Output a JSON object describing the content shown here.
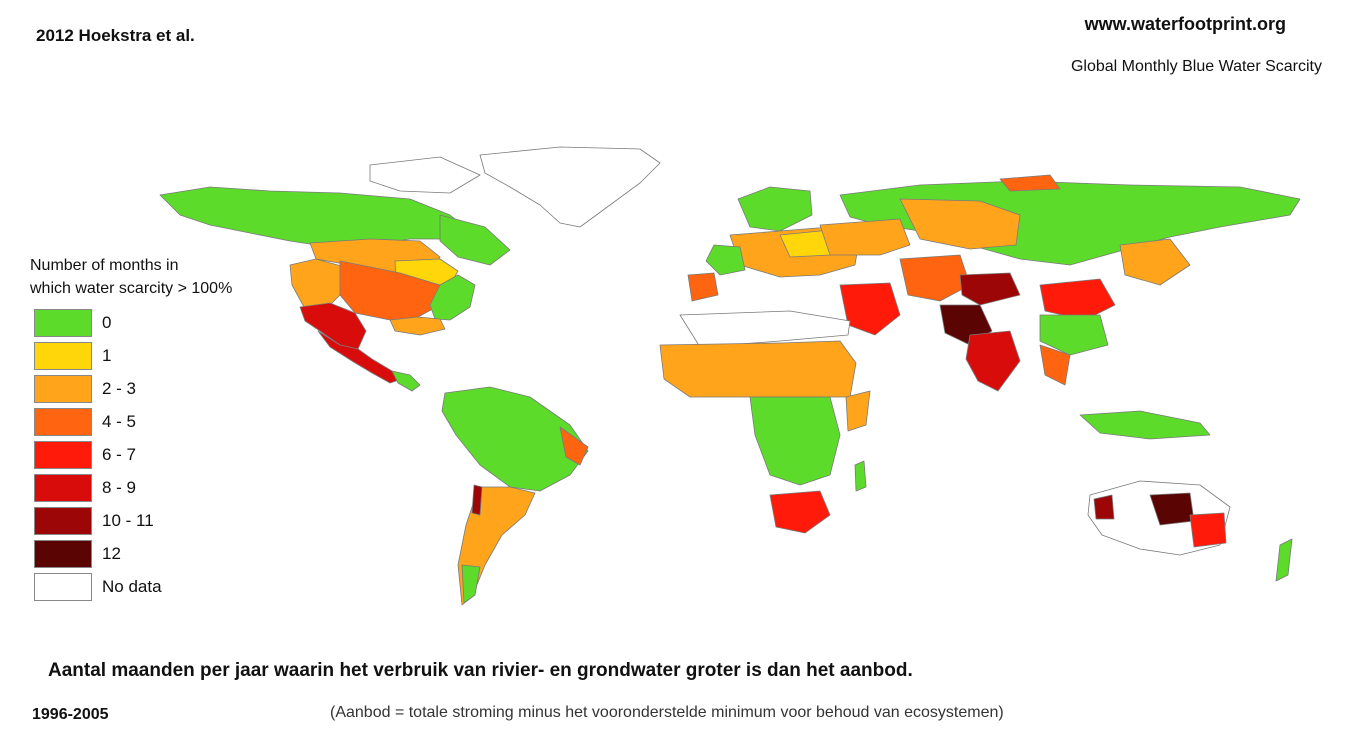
{
  "header": {
    "citation": "2012 Hoekstra et al.",
    "website": "www.waterfootprint.org",
    "map_title": "Global Monthly Blue Water Scarcity"
  },
  "legend": {
    "title_line1": "Number of months in",
    "title_line2": "which water scarcity > 100%",
    "items": [
      {
        "label": "0",
        "color": "#5ddb2a"
      },
      {
        "label": "1",
        "color": "#ffd60a"
      },
      {
        "label": "2 - 3",
        "color": "#ffa41b"
      },
      {
        "label": "4 - 5",
        "color": "#ff6510"
      },
      {
        "label": "6 - 7",
        "color": "#ff1a0a"
      },
      {
        "label": "8 - 9",
        "color": "#d90c0c"
      },
      {
        "label": "10 - 11",
        "color": "#9c0606"
      },
      {
        "label": "12",
        "color": "#5a0404"
      },
      {
        "label": "No data",
        "color": "#ffffff"
      }
    ]
  },
  "footer": {
    "caption": "Aantal maanden per jaar waarin het verbruik van rivier- en grondwater groter is dan het aanbod.",
    "period": "1996-2005",
    "note": "(Aanbod = totale stroming minus het vooronderstelde minimum voor behoud van ecosystemen)"
  }
}
